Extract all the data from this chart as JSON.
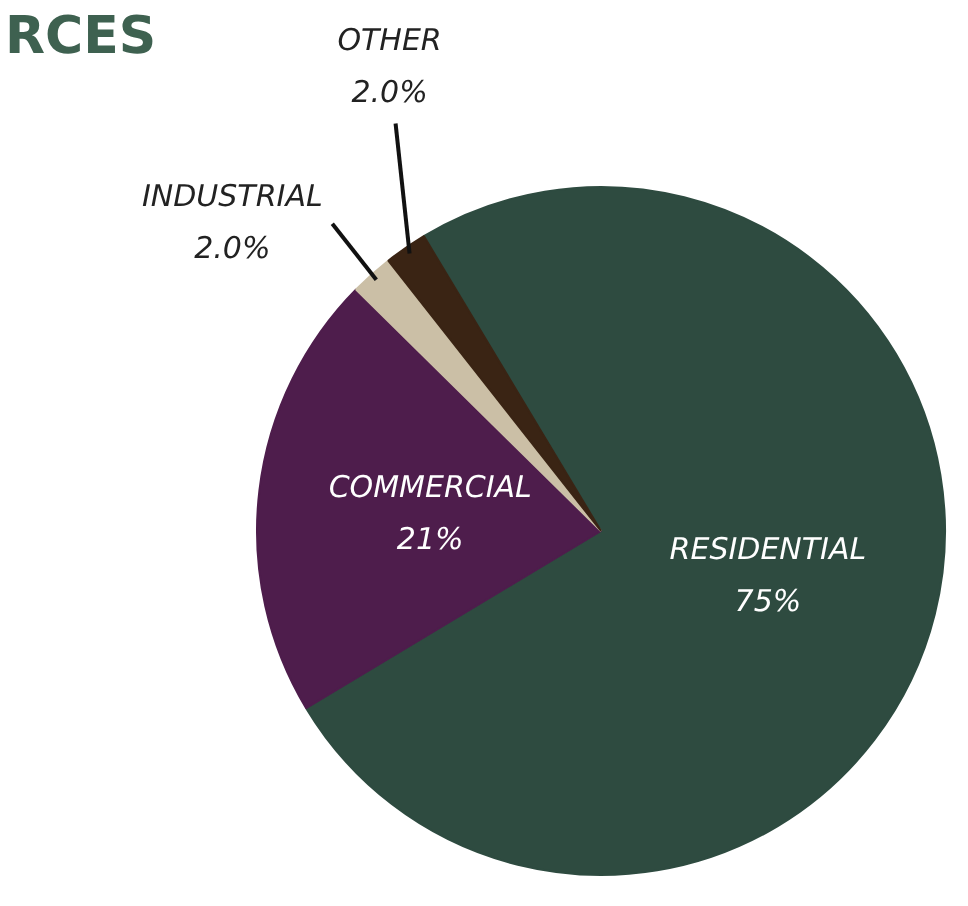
{
  "chart_data": {
    "type": "pie",
    "title": "RCES",
    "categories": [
      "RESIDENTIAL",
      "COMMERCIAL",
      "INDUSTRIAL",
      "OTHER"
    ],
    "values": [
      75,
      21,
      2.0,
      2.0
    ],
    "value_labels": [
      "75%",
      "21%",
      "2.0%",
      "2.0%"
    ],
    "colors": [
      "#2e4b40",
      "#4e1d4c",
      "#cbbfa6",
      "#3a2414"
    ],
    "legend": false
  }
}
